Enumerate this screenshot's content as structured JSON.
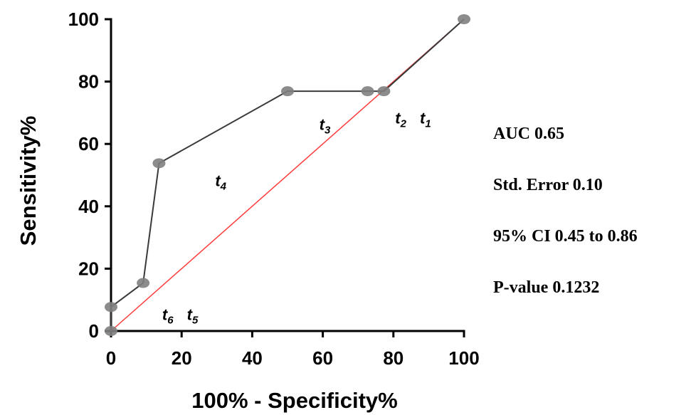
{
  "chart_data": {
    "type": "line",
    "xlabel": "100% - Specificity%",
    "ylabel": "Sensitivity%",
    "xlim": [
      0,
      100
    ],
    "ylim": [
      0,
      100
    ],
    "x_ticks": [
      "0",
      "20",
      "40",
      "60",
      "80",
      "100"
    ],
    "y_ticks": [
      "0",
      "20",
      "40",
      "60",
      "80",
      "100"
    ],
    "grid": false,
    "series": [
      {
        "color": "#3a3a3a",
        "points": [
          {
            "x": 0,
            "y": 0
          },
          {
            "x": 0,
            "y": 7.7
          },
          {
            "x": 9.1,
            "y": 15.4
          },
          {
            "x": 13.6,
            "y": 53.8
          },
          {
            "x": 50,
            "y": 76.9
          },
          {
            "x": 72.7,
            "y": 76.9
          },
          {
            "x": 77.3,
            "y": 76.9
          },
          {
            "x": 100,
            "y": 100
          }
        ]
      }
    ],
    "reference_line": {
      "color": "#ff3b3b",
      "points": [
        {
          "x": 0,
          "y": 0
        },
        {
          "x": 100,
          "y": 100
        }
      ]
    },
    "annotations": [
      {
        "id": "t1",
        "base": "t",
        "sub": "1",
        "x": 87.5,
        "y": 66.5
      },
      {
        "id": "t2",
        "base": "t",
        "sub": "2",
        "x": 80.5,
        "y": 66.5
      },
      {
        "id": "t3",
        "base": "t",
        "sub": "3",
        "x": 59,
        "y": 64.5
      },
      {
        "id": "t4",
        "base": "t",
        "sub": "4",
        "x": 29.5,
        "y": 46.5
      },
      {
        "id": "t5",
        "base": "t",
        "sub": "5",
        "x": 21.5,
        "y": 3.5
      },
      {
        "id": "t6",
        "base": "t",
        "sub": "6",
        "x": 14.5,
        "y": 3.5
      }
    ]
  },
  "stats": {
    "auc": "AUC 0.65",
    "std_error": "Std. Error 0.10",
    "ci": "95% CI 0.45 to 0.86",
    "p_value": "P-value 0.1232"
  }
}
